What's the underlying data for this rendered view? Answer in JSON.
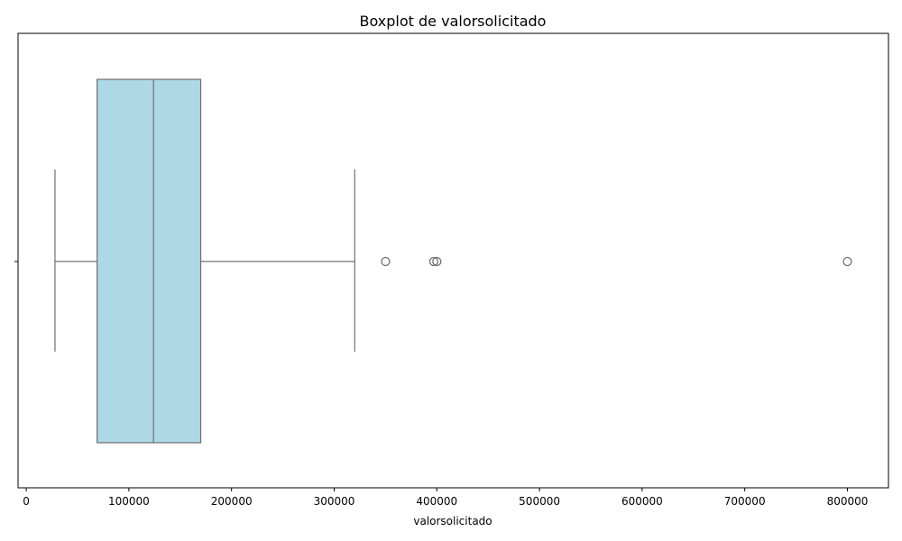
{
  "chart_data": {
    "type": "boxplot",
    "title": "Boxplot de valorsolicitado",
    "xlabel": "valorsolicitado",
    "ylabel": "",
    "orientation": "horizontal",
    "xlim": [
      -8000,
      840000
    ],
    "x_ticks": [
      0,
      100000,
      200000,
      300000,
      400000,
      500000,
      600000,
      700000,
      800000
    ],
    "x_tick_labels": [
      "0",
      "100000",
      "200000",
      "300000",
      "400000",
      "500000",
      "600000",
      "700000",
      "800000"
    ],
    "box": {
      "whisker_low": 28000,
      "q1": 69000,
      "median": 124000,
      "q3": 170000,
      "whisker_high": 320000
    },
    "outliers": [
      350000,
      397000,
      400000,
      800000
    ],
    "colors": {
      "box_fill": "#add8e6",
      "box_stroke": "#707070",
      "axis": "#000000"
    },
    "grid": false
  }
}
